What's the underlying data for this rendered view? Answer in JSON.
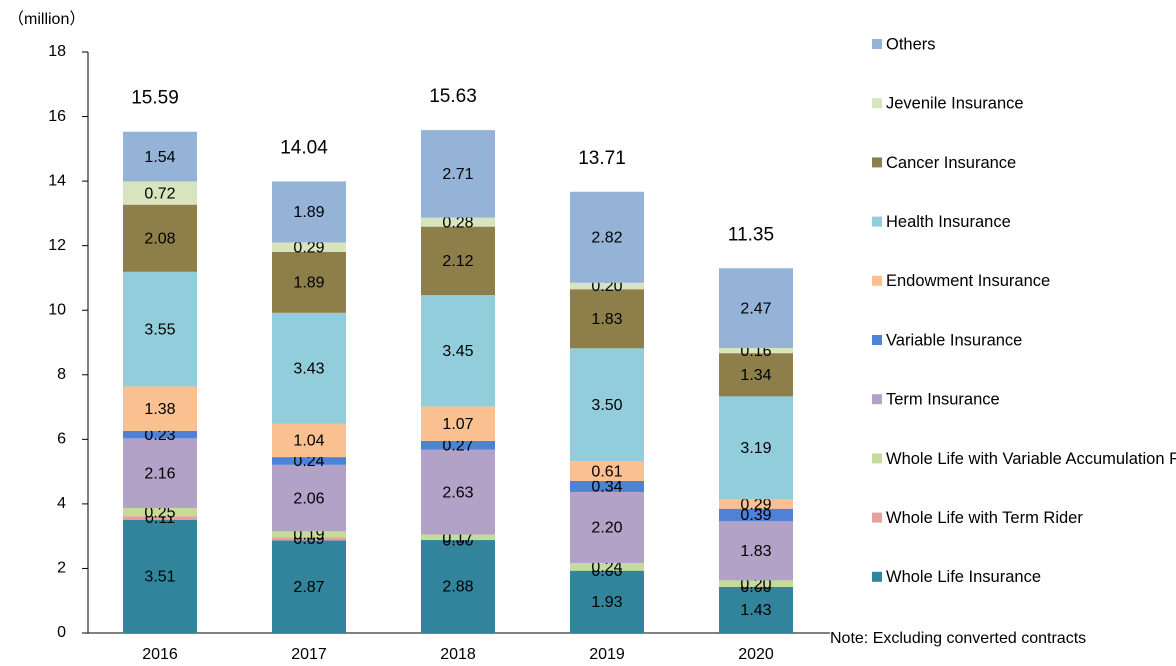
{
  "chart_data": {
    "type": "stacked_bar",
    "y_unit": "（million）",
    "note": "Note: Excluding converted contracts",
    "categories": [
      "2016",
      "2017",
      "2018",
      "2019",
      "2020"
    ],
    "totals": [
      15.59,
      14.04,
      15.63,
      13.71,
      11.35
    ],
    "ylim": [
      0,
      18
    ],
    "yticks": [
      0,
      2,
      4,
      6,
      8,
      10,
      12,
      14,
      16,
      18
    ],
    "series": [
      {
        "name": "Whole Life Insurance",
        "color": "#31849b",
        "values": [
          3.51,
          2.87,
          2.88,
          1.93,
          1.43
        ],
        "value_labels": [
          "3.51",
          "2.87",
          "2.88",
          "1.93",
          "1.43"
        ]
      },
      {
        "name": "Whole Life with Term Rider",
        "color": "#e6a19e",
        "values": [
          0.11,
          0.09,
          0,
          0,
          0
        ],
        "value_labels": [
          "0.11",
          "0.09",
          "0.00",
          "0.00",
          "0.00"
        ]
      },
      {
        "name": "Whole Life with Variable Accumulation Rider",
        "color": "#c4dc98",
        "values": [
          0.25,
          0.19,
          0.17,
          0.24,
          0.2
        ],
        "value_labels": [
          "0.25",
          "0.19",
          "0.17",
          "0.24",
          "0.20"
        ]
      },
      {
        "name": "Term Insurance",
        "color": "#b3a2c7",
        "values": [
          2.16,
          2.06,
          2.63,
          2.2,
          1.83
        ],
        "value_labels": [
          "2.16",
          "2.06",
          "2.63",
          "2.20",
          "1.83"
        ]
      },
      {
        "name": "Variable Insurance",
        "color": "#4f81d6",
        "values": [
          0.23,
          0.24,
          0.27,
          0.34,
          0.39
        ],
        "value_labels": [
          "0.23",
          "0.24",
          "0.27",
          "0.34",
          "0.39"
        ]
      },
      {
        "name": "Endowment Insurance",
        "color": "#fac090",
        "values": [
          1.38,
          1.04,
          1.07,
          0.61,
          0.29
        ],
        "value_labels": [
          "1.38",
          "1.04",
          "1.07",
          "0.61",
          "0.29"
        ]
      },
      {
        "name": "Health Insurance",
        "color": "#92cddc",
        "values": [
          3.55,
          3.43,
          3.45,
          3.5,
          3.19
        ],
        "value_labels": [
          "3.55",
          "3.43",
          "3.45",
          "3.50",
          "3.19"
        ]
      },
      {
        "name": "Cancer Insurance",
        "color": "#8e7f4a",
        "values": [
          2.08,
          1.89,
          2.12,
          1.83,
          1.34
        ],
        "value_labels": [
          "2.08",
          "1.89",
          "2.12",
          "1.83",
          "1.34"
        ]
      },
      {
        "name": "Jevenile Insurance",
        "color": "#d7e4bd",
        "values": [
          0.72,
          0.29,
          0.28,
          0.2,
          0.16
        ],
        "value_labels": [
          "0.72",
          "0.29",
          "0.28",
          "0.20",
          "0.16"
        ]
      },
      {
        "name": "Others",
        "color": "#95b3d7",
        "values": [
          1.54,
          1.89,
          2.71,
          2.82,
          2.47
        ],
        "value_labels": [
          "1.54",
          "1.89",
          "2.71",
          "2.82",
          "2.47"
        ]
      }
    ]
  }
}
